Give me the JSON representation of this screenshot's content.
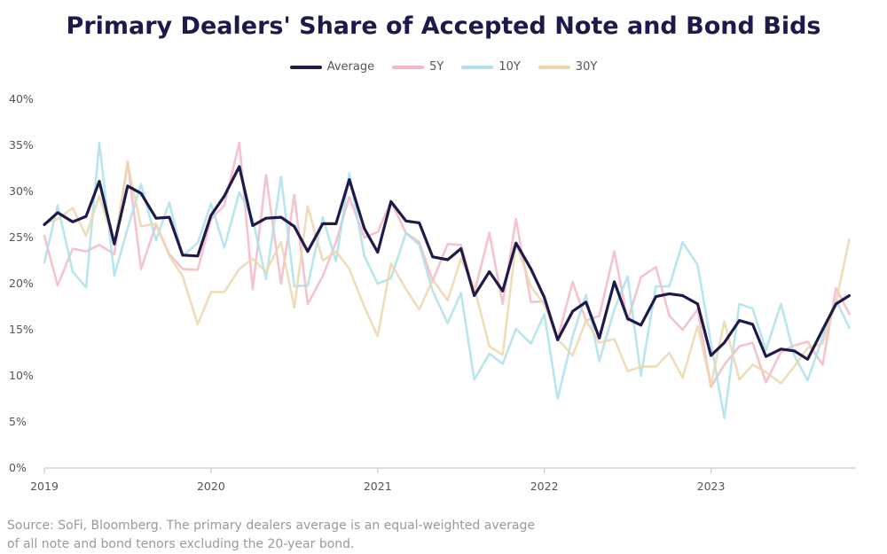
{
  "chart_data": {
    "type": "line",
    "title": "Primary Dealers' Share of Accepted Note and Bond Bids",
    "xlabel": "",
    "ylabel": "",
    "ylim": [
      0,
      40
    ],
    "xlim": [
      2019.0,
      2023.87
    ],
    "y_ticks": [
      "0%",
      "5%",
      "10%",
      "15%",
      "20%",
      "25%",
      "30%",
      "35%",
      "40%"
    ],
    "y_tick_values": [
      0,
      5,
      10,
      15,
      20,
      25,
      30,
      35,
      40
    ],
    "x_ticks": [
      "2019",
      "2020",
      "2021",
      "2022",
      "2023"
    ],
    "x_tick_values": [
      2019,
      2020,
      2021,
      2022,
      2023
    ],
    "grid": false,
    "legend_position": "top-center",
    "series": [
      {
        "name": "5Y",
        "color": "#f2b8c4",
        "values": [
          [
            2019.0,
            25.2
          ],
          [
            2019.08,
            19.8
          ],
          [
            2019.17,
            23.8
          ],
          [
            2019.25,
            23.5
          ],
          [
            2019.33,
            24.2
          ],
          [
            2019.42,
            23.2
          ],
          [
            2019.5,
            33.2
          ],
          [
            2019.58,
            21.6
          ],
          [
            2019.67,
            26.4
          ],
          [
            2019.75,
            23.2
          ],
          [
            2019.83,
            21.6
          ],
          [
            2019.92,
            21.5
          ],
          [
            2020.0,
            27.0
          ],
          [
            2020.08,
            28.5
          ],
          [
            2020.17,
            35.3
          ],
          [
            2020.25,
            19.4
          ],
          [
            2020.33,
            31.8
          ],
          [
            2020.42,
            20.0
          ],
          [
            2020.5,
            29.6
          ],
          [
            2020.58,
            17.8
          ],
          [
            2020.67,
            20.8
          ],
          [
            2020.75,
            24.5
          ],
          [
            2020.83,
            29.4
          ],
          [
            2020.92,
            25.0
          ],
          [
            2021.0,
            25.6
          ],
          [
            2021.08,
            28.9
          ],
          [
            2021.17,
            25.5
          ],
          [
            2021.25,
            24.5
          ],
          [
            2021.33,
            20.3
          ],
          [
            2021.42,
            24.3
          ],
          [
            2021.5,
            24.2
          ],
          [
            2021.58,
            19.0
          ],
          [
            2021.67,
            25.5
          ],
          [
            2021.75,
            17.8
          ],
          [
            2021.83,
            27.0
          ],
          [
            2021.92,
            18.0
          ],
          [
            2022.0,
            18.1
          ],
          [
            2022.08,
            14.0
          ],
          [
            2022.17,
            20.2
          ],
          [
            2022.25,
            16.0
          ],
          [
            2022.33,
            16.5
          ],
          [
            2022.42,
            23.5
          ],
          [
            2022.5,
            16.0
          ],
          [
            2022.58,
            20.7
          ],
          [
            2022.67,
            21.8
          ],
          [
            2022.75,
            16.5
          ],
          [
            2022.83,
            15.0
          ],
          [
            2022.92,
            17.2
          ],
          [
            2023.0,
            8.8
          ],
          [
            2023.08,
            11.2
          ],
          [
            2023.17,
            13.2
          ],
          [
            2023.25,
            13.6
          ],
          [
            2023.33,
            9.3
          ],
          [
            2023.42,
            12.6
          ],
          [
            2023.5,
            13.3
          ],
          [
            2023.58,
            13.7
          ],
          [
            2023.67,
            11.2
          ],
          [
            2023.75,
            19.5
          ],
          [
            2023.83,
            16.7
          ]
        ]
      },
      {
        "name": "10Y",
        "color": "#ade0ea",
        "values": [
          [
            2019.0,
            22.3
          ],
          [
            2019.08,
            28.5
          ],
          [
            2019.17,
            21.3
          ],
          [
            2019.25,
            19.6
          ],
          [
            2019.33,
            35.3
          ],
          [
            2019.42,
            20.9
          ],
          [
            2019.5,
            26.0
          ],
          [
            2019.58,
            30.8
          ],
          [
            2019.67,
            24.7
          ],
          [
            2019.75,
            28.8
          ],
          [
            2019.83,
            23.0
          ],
          [
            2019.92,
            24.4
          ],
          [
            2020.0,
            28.7
          ],
          [
            2020.08,
            23.9
          ],
          [
            2020.17,
            29.9
          ],
          [
            2020.25,
            27.0
          ],
          [
            2020.33,
            20.5
          ],
          [
            2020.42,
            31.6
          ],
          [
            2020.5,
            19.7
          ],
          [
            2020.58,
            19.8
          ],
          [
            2020.67,
            27.2
          ],
          [
            2020.75,
            22.4
          ],
          [
            2020.83,
            32.0
          ],
          [
            2020.92,
            23.0
          ],
          [
            2021.0,
            20.0
          ],
          [
            2021.08,
            20.6
          ],
          [
            2021.17,
            25.5
          ],
          [
            2021.25,
            24.2
          ],
          [
            2021.33,
            19.2
          ],
          [
            2021.42,
            15.7
          ],
          [
            2021.5,
            19.0
          ],
          [
            2021.58,
            9.6
          ],
          [
            2021.67,
            12.4
          ],
          [
            2021.75,
            11.3
          ],
          [
            2021.83,
            15.1
          ],
          [
            2021.92,
            13.5
          ],
          [
            2022.0,
            16.7
          ],
          [
            2022.08,
            7.5
          ],
          [
            2022.17,
            14.3
          ],
          [
            2022.25,
            18.8
          ],
          [
            2022.33,
            11.6
          ],
          [
            2022.42,
            17.2
          ],
          [
            2022.5,
            20.8
          ],
          [
            2022.58,
            10.0
          ],
          [
            2022.67,
            19.7
          ],
          [
            2022.75,
            19.7
          ],
          [
            2022.83,
            24.5
          ],
          [
            2022.92,
            22.0
          ],
          [
            2023.0,
            13.6
          ],
          [
            2023.08,
            5.4
          ],
          [
            2023.17,
            17.8
          ],
          [
            2023.25,
            17.3
          ],
          [
            2023.33,
            12.8
          ],
          [
            2023.42,
            17.8
          ],
          [
            2023.5,
            12.2
          ],
          [
            2023.58,
            9.5
          ],
          [
            2023.67,
            14.2
          ],
          [
            2023.75,
            18.2
          ],
          [
            2023.83,
            15.2
          ]
        ]
      },
      {
        "name": "30Y",
        "color": "#ecd7ad",
        "values": [
          [
            2019.0,
            26.5
          ],
          [
            2019.08,
            27.0
          ],
          [
            2019.17,
            28.2
          ],
          [
            2019.25,
            25.2
          ],
          [
            2019.33,
            29.5
          ],
          [
            2019.42,
            24.3
          ],
          [
            2019.5,
            33.0
          ],
          [
            2019.58,
            26.2
          ],
          [
            2019.67,
            26.5
          ],
          [
            2019.75,
            23.0
          ],
          [
            2019.83,
            20.8
          ],
          [
            2019.92,
            15.6
          ],
          [
            2020.0,
            19.1
          ],
          [
            2020.08,
            19.1
          ],
          [
            2020.17,
            21.6
          ],
          [
            2020.25,
            22.7
          ],
          [
            2020.33,
            21.3
          ],
          [
            2020.42,
            24.5
          ],
          [
            2020.5,
            17.4
          ],
          [
            2020.58,
            28.4
          ],
          [
            2020.67,
            22.5
          ],
          [
            2020.75,
            23.5
          ],
          [
            2020.83,
            21.6
          ],
          [
            2020.92,
            17.5
          ],
          [
            2021.0,
            14.3
          ],
          [
            2021.08,
            22.2
          ],
          [
            2021.17,
            19.4
          ],
          [
            2021.25,
            17.2
          ],
          [
            2021.33,
            20.4
          ],
          [
            2021.42,
            18.2
          ],
          [
            2021.5,
            22.7
          ],
          [
            2021.58,
            19.6
          ],
          [
            2021.67,
            13.2
          ],
          [
            2021.75,
            12.3
          ],
          [
            2021.83,
            24.4
          ],
          [
            2021.92,
            19.7
          ],
          [
            2022.0,
            17.7
          ],
          [
            2022.08,
            14.0
          ],
          [
            2022.17,
            12.2
          ],
          [
            2022.25,
            16.0
          ],
          [
            2022.33,
            13.6
          ],
          [
            2022.42,
            14.0
          ],
          [
            2022.5,
            10.5
          ],
          [
            2022.58,
            11.0
          ],
          [
            2022.67,
            11.0
          ],
          [
            2022.75,
            12.5
          ],
          [
            2022.83,
            9.8
          ],
          [
            2022.92,
            15.4
          ],
          [
            2023.0,
            9.0
          ],
          [
            2023.08,
            15.9
          ],
          [
            2023.17,
            9.6
          ],
          [
            2023.25,
            11.2
          ],
          [
            2023.33,
            10.4
          ],
          [
            2023.42,
            9.2
          ],
          [
            2023.5,
            11.0
          ],
          [
            2023.58,
            13.0
          ],
          [
            2023.67,
            13.5
          ],
          [
            2023.75,
            18.0
          ],
          [
            2023.83,
            24.8
          ]
        ]
      },
      {
        "name": "Average",
        "color": "#1f1a4a",
        "values": [
          [
            2019.0,
            26.4
          ],
          [
            2019.08,
            27.7
          ],
          [
            2019.17,
            26.7
          ],
          [
            2019.25,
            27.3
          ],
          [
            2019.33,
            31.1
          ],
          [
            2019.42,
            24.3
          ],
          [
            2019.5,
            30.6
          ],
          [
            2019.58,
            29.8
          ],
          [
            2019.67,
            27.1
          ],
          [
            2019.75,
            27.2
          ],
          [
            2019.83,
            23.1
          ],
          [
            2019.92,
            23.0
          ],
          [
            2020.0,
            27.4
          ],
          [
            2020.08,
            29.5
          ],
          [
            2020.17,
            32.7
          ],
          [
            2020.25,
            26.3
          ],
          [
            2020.33,
            27.1
          ],
          [
            2020.42,
            27.2
          ],
          [
            2020.5,
            26.2
          ],
          [
            2020.58,
            23.5
          ],
          [
            2020.67,
            26.5
          ],
          [
            2020.75,
            26.5
          ],
          [
            2020.83,
            31.3
          ],
          [
            2020.92,
            26.0
          ],
          [
            2021.0,
            23.4
          ],
          [
            2021.08,
            28.9
          ],
          [
            2021.17,
            26.8
          ],
          [
            2021.25,
            26.6
          ],
          [
            2021.33,
            22.9
          ],
          [
            2021.42,
            22.6
          ],
          [
            2021.5,
            23.8
          ],
          [
            2021.58,
            18.7
          ],
          [
            2021.67,
            21.3
          ],
          [
            2021.75,
            19.2
          ],
          [
            2021.83,
            24.4
          ],
          [
            2021.92,
            21.6
          ],
          [
            2022.0,
            18.5
          ],
          [
            2022.08,
            13.9
          ],
          [
            2022.17,
            17.0
          ],
          [
            2022.25,
            18.0
          ],
          [
            2022.33,
            14.1
          ],
          [
            2022.42,
            20.2
          ],
          [
            2022.5,
            16.2
          ],
          [
            2022.58,
            15.5
          ],
          [
            2022.67,
            18.6
          ],
          [
            2022.75,
            18.9
          ],
          [
            2022.83,
            18.7
          ],
          [
            2022.92,
            17.8
          ],
          [
            2023.0,
            12.2
          ],
          [
            2023.08,
            13.6
          ],
          [
            2023.17,
            16.0
          ],
          [
            2023.25,
            15.6
          ],
          [
            2023.33,
            12.1
          ],
          [
            2023.42,
            12.9
          ],
          [
            2023.5,
            12.7
          ],
          [
            2023.58,
            11.8
          ],
          [
            2023.67,
            15.0
          ],
          [
            2023.75,
            17.8
          ],
          [
            2023.83,
            18.7
          ]
        ]
      }
    ]
  },
  "legend": [
    {
      "label": "Average",
      "color": "#1f1a4a"
    },
    {
      "label": "5Y",
      "color": "#f2b8c4"
    },
    {
      "label": "10Y",
      "color": "#ade0ea"
    },
    {
      "label": "30Y",
      "color": "#ecd7ad"
    }
  ],
  "source": {
    "line1": "Source: SoFi, Bloomberg. The primary dealers average is an equal-weighted average",
    "line2": "of all note and bond tenors excluding the 20-year bond."
  }
}
